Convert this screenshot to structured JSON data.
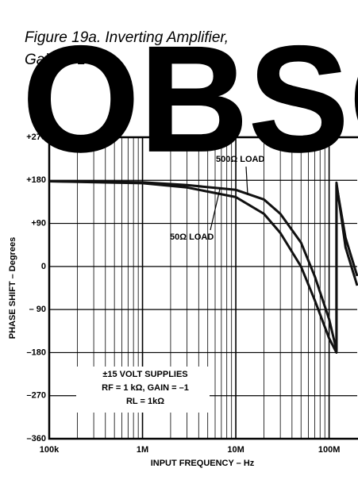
{
  "chart_data": {
    "type": "line",
    "title": [
      "Figure 19a. Inverting Amplifier,",
      "Gain of 1"
    ],
    "watermark": "OBSOLETE",
    "x_label": "INPUT FREQUENCY – Hz",
    "y_label": "PHASE SHIFT – Degrees",
    "xscale": "log",
    "xlim": [
      100000,
      200000000
    ],
    "xticks": [
      {
        "value": 100000,
        "label": "100k"
      },
      {
        "value": 1000000,
        "label": "1M"
      },
      {
        "value": 10000000,
        "label": "10M"
      },
      {
        "value": 100000000,
        "label": "100M"
      }
    ],
    "x_minor_ticks": [
      200000,
      300000,
      400000,
      500000,
      600000,
      700000,
      800000,
      900000,
      2000000,
      3000000,
      4000000,
      5000000,
      6000000,
      7000000,
      8000000,
      9000000,
      20000000,
      30000000,
      40000000,
      50000000,
      60000000,
      70000000,
      80000000,
      90000000
    ],
    "ylim": [
      -360,
      270
    ],
    "yticks": [
      {
        "value": 270,
        "label": "+270"
      },
      {
        "value": 180,
        "label": "+180"
      },
      {
        "value": 90,
        "label": "+90"
      },
      0,
      {
        "value": -90,
        "label": "– 90"
      },
      {
        "value": -180,
        "label": "–180"
      },
      {
        "value": -270,
        "label": "–270"
      },
      {
        "value": -360,
        "label": "–360"
      }
    ],
    "grid": true,
    "x": [
      100000,
      1000000,
      3000000,
      10000000,
      20000000,
      30000000,
      50000000,
      70000000,
      100000000,
      120000000,
      120000000,
      150000000,
      200000000
    ],
    "series": [
      {
        "name": "500Ω LOAD",
        "color": "#111111",
        "values": [
          178,
          176,
          170,
          160,
          140,
          110,
          50,
          -20,
          -110,
          -175,
          170,
          60,
          -20
        ]
      },
      {
        "name": "50Ω LOAD",
        "color": "#111111",
        "values": [
          178,
          174,
          165,
          145,
          110,
          70,
          0,
          -70,
          -150,
          -180,
          175,
          40,
          -40
        ]
      }
    ],
    "annotations": [
      "±15 VOLT SUPPLIES",
      "RF = 1 kΩ, GAIN = –1",
      "RL = 1kΩ"
    ]
  }
}
